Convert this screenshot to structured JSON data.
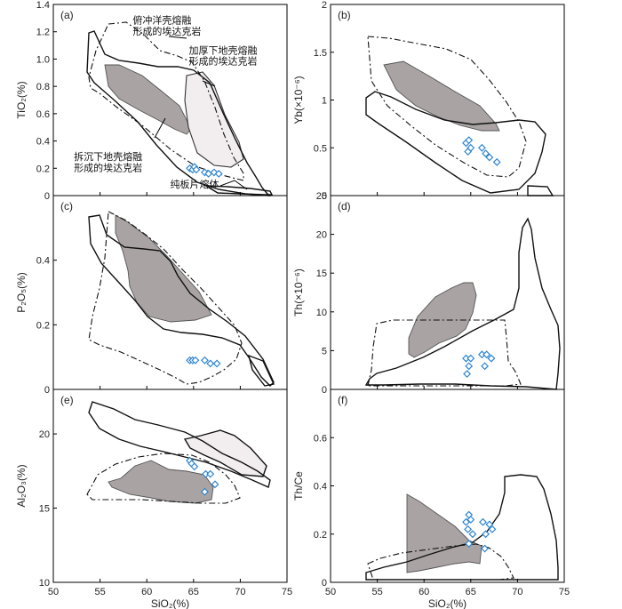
{
  "chart_data": [
    {
      "id": "a",
      "type": "scatter",
      "tag": "(a)",
      "ylabel": "TiO₂(%)",
      "xlabel": "",
      "xlim": [
        50,
        75
      ],
      "ylim": [
        0,
        1.4
      ],
      "yticks": [
        "0",
        "0.2",
        "0.4",
        "0.6",
        "0.8",
        "1.0",
        "1.2",
        "1.4"
      ],
      "xticks": [],
      "points": [
        [
          64.6,
          0.2
        ],
        [
          64.9,
          0.19
        ],
        [
          65.1,
          0.21
        ],
        [
          65.3,
          0.19
        ],
        [
          66.2,
          0.17
        ],
        [
          66.6,
          0.16
        ],
        [
          67.2,
          0.17
        ],
        [
          67.7,
          0.16
        ]
      ],
      "annotations": [
        {
          "text": "俯冲洋壳熔融",
          "x": 58.5,
          "y": 1.26
        },
        {
          "text": "形成的埃达克岩",
          "x": 58.5,
          "y": 1.18
        },
        {
          "text": "加厚下地壳熔融",
          "x": 64.5,
          "y": 1.04
        },
        {
          "text": "形成的埃达克岩",
          "x": 64.5,
          "y": 0.96
        },
        {
          "text": "拆沉下地壳熔融",
          "x": 52.2,
          "y": 0.26
        },
        {
          "text": "形成的埃达克岩",
          "x": 52.2,
          "y": 0.18
        },
        {
          "text": "纯板片熔体",
          "x": 62.5,
          "y": 0.06
        }
      ]
    },
    {
      "id": "b",
      "type": "scatter",
      "tag": "(b)",
      "ylabel": "Yb(×10⁻⁶)",
      "xlabel": "",
      "xlim": [
        50,
        75
      ],
      "ylim": [
        0,
        2.0
      ],
      "yticks": [
        "0",
        "0.5",
        "1",
        "1.5",
        "2"
      ],
      "xticks": [],
      "points": [
        [
          64.5,
          0.55
        ],
        [
          64.8,
          0.58
        ],
        [
          65.0,
          0.5
        ],
        [
          64.7,
          0.46
        ],
        [
          66.2,
          0.5
        ],
        [
          66.6,
          0.44
        ],
        [
          67.0,
          0.4
        ],
        [
          67.8,
          0.35
        ]
      ]
    },
    {
      "id": "c",
      "type": "scatter",
      "tag": "(c)",
      "ylabel": "P₂O₅(%)",
      "xlabel": "",
      "xlim": [
        50,
        75
      ],
      "ylim": [
        0,
        0.6
      ],
      "yticks": [
        "0",
        "0.2",
        "0.4"
      ],
      "xticks": [],
      "points": [
        [
          64.6,
          0.09
        ],
        [
          64.9,
          0.09
        ],
        [
          65.2,
          0.09
        ],
        [
          66.2,
          0.09
        ],
        [
          66.8,
          0.08
        ],
        [
          67.5,
          0.08
        ]
      ]
    },
    {
      "id": "d",
      "type": "scatter",
      "tag": "(d)",
      "ylabel": "Th(×10⁻⁶)",
      "xlabel": "",
      "xlim": [
        50,
        75
      ],
      "ylim": [
        0,
        25
      ],
      "yticks": [
        "0",
        "5",
        "10",
        "15",
        "20",
        "25"
      ],
      "xticks": [],
      "points": [
        [
          64.5,
          4.0
        ],
        [
          65.0,
          4.0
        ],
        [
          64.8,
          3.0
        ],
        [
          64.6,
          2.0
        ],
        [
          66.2,
          4.5
        ],
        [
          66.7,
          4.5
        ],
        [
          67.2,
          4.0
        ],
        [
          66.5,
          3.0
        ]
      ]
    },
    {
      "id": "e",
      "type": "scatter",
      "tag": "(e)",
      "ylabel": "Al₂O₃(%)",
      "xlabel": "SiO₂(%)",
      "xlim": [
        50,
        75
      ],
      "ylim": [
        10,
        23
      ],
      "yticks": [
        "10",
        "15",
        "20"
      ],
      "xticks": [
        "50",
        "55",
        "60",
        "65",
        "70",
        "75"
      ],
      "points": [
        [
          64.6,
          18.2
        ],
        [
          64.8,
          18.0
        ],
        [
          65.1,
          17.8
        ],
        [
          66.3,
          17.3
        ],
        [
          66.8,
          17.3
        ],
        [
          67.3,
          16.6
        ],
        [
          66.2,
          16.1
        ]
      ]
    },
    {
      "id": "f",
      "type": "scatter",
      "tag": "(f)",
      "ylabel": "Th/Ce",
      "xlabel": "SiO₂(%)",
      "xlim": [
        50,
        75
      ],
      "ylim": [
        0,
        0.8
      ],
      "yticks": [
        "0",
        "0.2",
        "0.4",
        "0.6"
      ],
      "xticks": [
        "50",
        "55",
        "60",
        "65",
        "70",
        "75"
      ],
      "points": [
        [
          64.5,
          0.25
        ],
        [
          64.8,
          0.28
        ],
        [
          65.0,
          0.26
        ],
        [
          64.7,
          0.22
        ],
        [
          65.2,
          0.2
        ],
        [
          64.8,
          0.16
        ],
        [
          66.3,
          0.25
        ],
        [
          66.6,
          0.2
        ],
        [
          67.0,
          0.24
        ],
        [
          66.5,
          0.14
        ],
        [
          67.3,
          0.22
        ]
      ]
    }
  ]
}
